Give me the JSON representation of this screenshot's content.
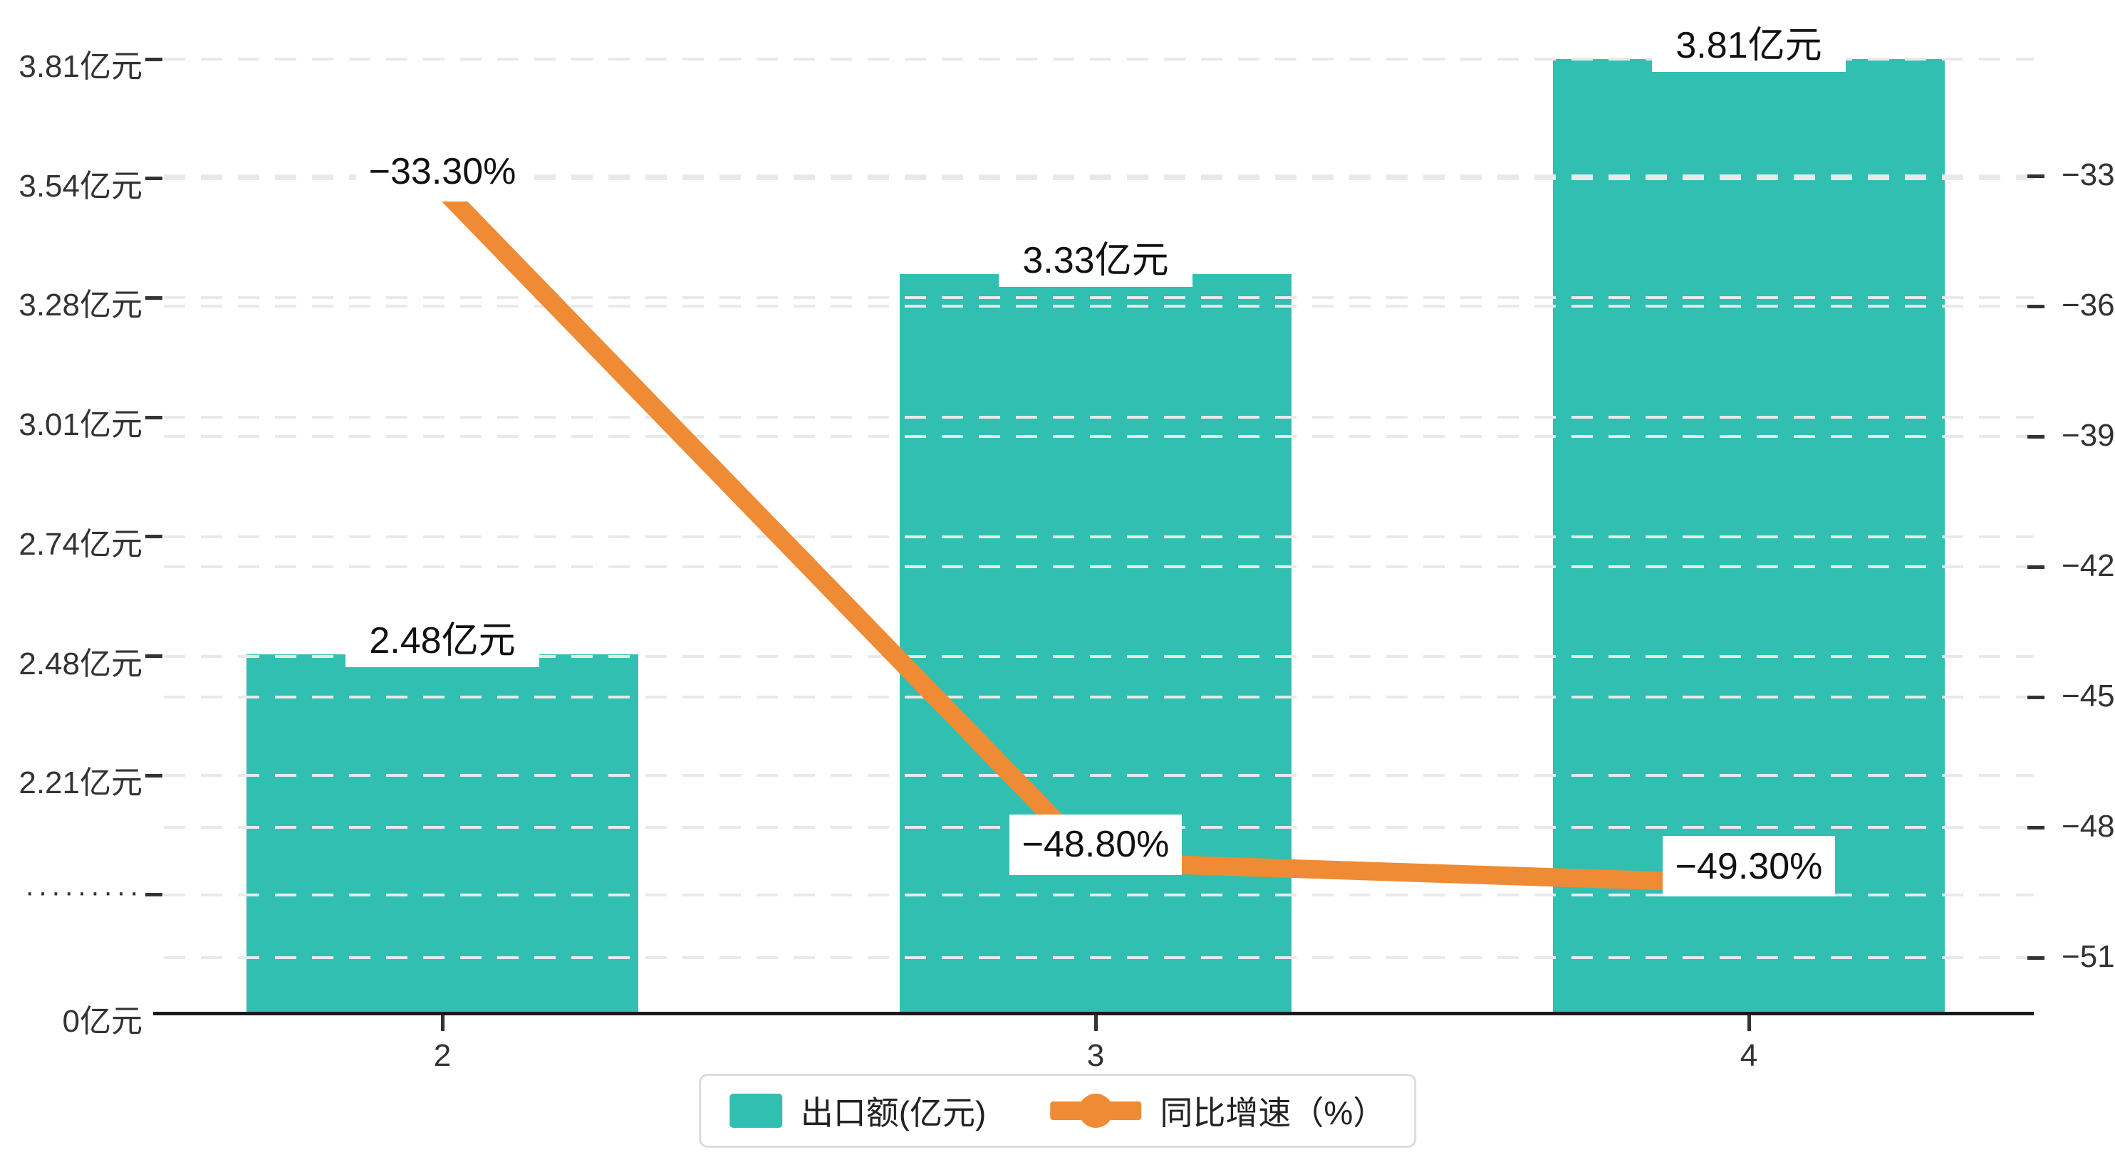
{
  "chart_data": {
    "type": "combo-bar-line",
    "categories": [
      "2",
      "3",
      "4"
    ],
    "series": [
      {
        "name": "出口额(亿元)",
        "type": "bar",
        "values": [
          2.48,
          3.33,
          3.81
        ],
        "labels": [
          "2.48亿元",
          "3.33亿元",
          "3.81亿元"
        ],
        "color": "#31BFB2"
      },
      {
        "name": "同比增速（%）",
        "type": "line",
        "values": [
          -33.3,
          -48.8,
          -49.3
        ],
        "labels": [
          "−33.30%",
          "−48.80%",
          "−49.30%"
        ],
        "color": "#EE8B34"
      }
    ],
    "left_axis": {
      "tick_labels": [
        "3.81亿元",
        "3.54亿元",
        "3.28亿元",
        "3.01亿元",
        "2.74亿元",
        "2.48亿元",
        "2.21亿元",
        "·········",
        "0亿元"
      ],
      "tick_values": [
        3.81,
        3.54,
        3.28,
        3.01,
        2.74,
        2.48,
        2.21,
        null,
        0
      ],
      "break_marker": "·········",
      "min": 0,
      "max": 3.81
    },
    "right_axis": {
      "tick_labels": [
        "−33",
        "−36",
        "−39",
        "−42",
        "−45",
        "−48",
        "−51"
      ],
      "tick_values": [
        -33,
        -36,
        -39,
        -42,
        -45,
        -48,
        -51
      ],
      "min": -51,
      "max": -33
    },
    "grid": true,
    "legend_position": "bottom"
  },
  "legend": {
    "items": [
      {
        "label": "出口额(亿元)",
        "marker": "bar-swatch",
        "color": "#31BFB2"
      },
      {
        "label": "同比增速（%）",
        "marker": "line-dot",
        "color": "#EE8B34"
      }
    ]
  },
  "colors": {
    "bar": "#31BFB2",
    "line": "#EE8B34",
    "axis": "#1a1a1a",
    "tick": "#333333",
    "grid": "#e9e9e9",
    "label_text": "#111111",
    "axis_text": "#333333",
    "legend_border": "#dcdcdc",
    "background": "#ffffff"
  }
}
